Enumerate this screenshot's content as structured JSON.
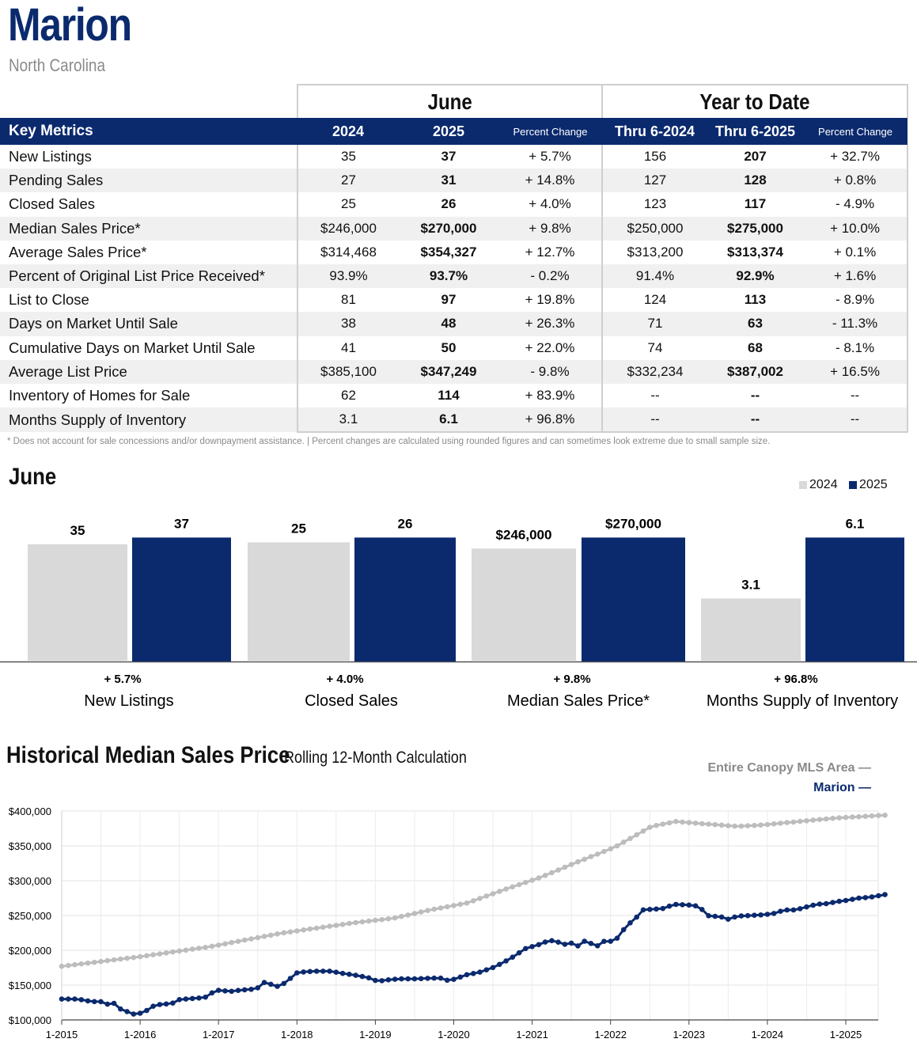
{
  "header": {
    "title": "Marion",
    "subtitle": "North Carolina"
  },
  "table": {
    "group_june": "June",
    "group_ytd": "Year to Date",
    "col_metric": "Key Metrics",
    "col_june_2024": "2024",
    "col_june_2025": "2025",
    "col_june_pct": "Percent Change",
    "col_ytd_2024": "Thru 6-2024",
    "col_ytd_2025": "Thru 6-2025",
    "col_ytd_pct": "Percent Change",
    "rows": [
      {
        "label": "New Listings",
        "j24": "35",
        "j25": "37",
        "jpc": "+ 5.7%",
        "y24": "156",
        "y25": "207",
        "ypc": "+ 32.7%"
      },
      {
        "label": "Pending Sales",
        "j24": "27",
        "j25": "31",
        "jpc": "+ 14.8%",
        "y24": "127",
        "y25": "128",
        "ypc": "+ 0.8%"
      },
      {
        "label": "Closed Sales",
        "j24": "25",
        "j25": "26",
        "jpc": "+ 4.0%",
        "y24": "123",
        "y25": "117",
        "ypc": "- 4.9%"
      },
      {
        "label": "Median Sales Price*",
        "j24": "$246,000",
        "j25": "$270,000",
        "jpc": "+ 9.8%",
        "y24": "$250,000",
        "y25": "$275,000",
        "ypc": "+ 10.0%"
      },
      {
        "label": "Average Sales Price*",
        "j24": "$314,468",
        "j25": "$354,327",
        "jpc": "+ 12.7%",
        "y24": "$313,200",
        "y25": "$313,374",
        "ypc": "+ 0.1%"
      },
      {
        "label": "Percent of Original List Price Received*",
        "j24": "93.9%",
        "j25": "93.7%",
        "jpc": "- 0.2%",
        "y24": "91.4%",
        "y25": "92.9%",
        "ypc": "+ 1.6%"
      },
      {
        "label": "List to Close",
        "j24": "81",
        "j25": "97",
        "jpc": "+ 19.8%",
        "y24": "124",
        "y25": "113",
        "ypc": "- 8.9%"
      },
      {
        "label": "Days on Market Until Sale",
        "j24": "38",
        "j25": "48",
        "jpc": "+ 26.3%",
        "y24": "71",
        "y25": "63",
        "ypc": "- 11.3%"
      },
      {
        "label": "Cumulative Days on Market Until Sale",
        "j24": "41",
        "j25": "50",
        "jpc": "+ 22.0%",
        "y24": "74",
        "y25": "68",
        "ypc": "- 8.1%"
      },
      {
        "label": "Average List Price",
        "j24": "$385,100",
        "j25": "$347,249",
        "jpc": "- 9.8%",
        "y24": "$332,234",
        "y25": "$387,002",
        "ypc": "+ 16.5%"
      },
      {
        "label": "Inventory of Homes for Sale",
        "j24": "62",
        "j25": "114",
        "jpc": "+ 83.9%",
        "y24": "--",
        "y25": "--",
        "ypc": "--"
      },
      {
        "label": "Months Supply of Inventory",
        "j24": "3.1",
        "j25": "6.1",
        "jpc": "+ 96.8%",
        "y24": "--",
        "y25": "--",
        "ypc": "--"
      }
    ]
  },
  "footnote": "* Does not account for sale concessions and/or downpayment assistance.  |  Percent changes are calculated using rounded figures and can sometimes look extreme due to small sample size.",
  "june_section": {
    "title": "June",
    "legend_2024": "2024",
    "legend_2025": "2025"
  },
  "historical": {
    "title": "Historical Median Sales Price",
    "subtitle": "Rolling 12-Month Calculation",
    "legend_area": "Entire Canopy MLS Area  —",
    "legend_marion": "Marion  —"
  },
  "colors": {
    "navy": "#0b2a6e",
    "gray_bar": "#d9d9d9",
    "gray_line": "#bdbdbd"
  },
  "chart_data": [
    {
      "type": "bar",
      "title": "June",
      "groups": [
        {
          "category": "New Listings",
          "v2024": 35,
          "v2025": 37,
          "label2024": "35",
          "label2025": "37",
          "pct": "+ 5.7%"
        },
        {
          "category": "Closed Sales",
          "v2024": 25,
          "v2025": 26,
          "label2024": "25",
          "label2025": "26",
          "pct": "+ 4.0%"
        },
        {
          "category": "Median Sales Price*",
          "v2024": 246000,
          "v2025": 270000,
          "label2024": "$246,000",
          "label2025": "$270,000",
          "pct": "+ 9.8%"
        },
        {
          "category": "Months Supply of Inventory",
          "v2024": 3.1,
          "v2025": 6.1,
          "label2024": "3.1",
          "label2025": "6.1",
          "pct": "+ 96.8%"
        }
      ],
      "series_names": [
        "2024",
        "2025"
      ]
    },
    {
      "type": "line",
      "title": "Historical Median Sales Price",
      "ylim": [
        100000,
        400000
      ],
      "yticks": [
        100000,
        150000,
        200000,
        250000,
        300000,
        350000,
        400000
      ],
      "ytick_labels": [
        "$100,000",
        "$150,000",
        "$200,000",
        "$250,000",
        "$300,000",
        "$350,000",
        "$400,000"
      ],
      "xtick_labels": [
        "1-2015",
        "1-2016",
        "1-2017",
        "1-2018",
        "1-2019",
        "1-2020",
        "1-2021",
        "1-2022",
        "1-2023",
        "1-2024",
        "1-2025"
      ],
      "x_start": "1-2015",
      "x_end_index": 125,
      "series": [
        {
          "name": "Entire Canopy MLS Area",
          "color": "#bdbdbd",
          "anchors": [
            [
              0,
              177000
            ],
            [
              12,
              190000
            ],
            [
              24,
              205000
            ],
            [
              36,
              225000
            ],
            [
              48,
              240000
            ],
            [
              54,
              246000
            ],
            [
              60,
              258000
            ],
            [
              66,
              268000
            ],
            [
              72,
              287000
            ],
            [
              78,
              305000
            ],
            [
              84,
              327000
            ],
            [
              90,
              348000
            ],
            [
              96,
              378000
            ],
            [
              100,
              385000
            ],
            [
              104,
              382000
            ],
            [
              110,
              378000
            ],
            [
              114,
              380000
            ],
            [
              120,
              385000
            ],
            [
              126,
              390000
            ],
            [
              134,
              394000
            ]
          ]
        },
        {
          "name": "Marion",
          "color": "#0b2a6e",
          "anchors": [
            [
              0,
              130000
            ],
            [
              3,
              130000
            ],
            [
              6,
              126000
            ],
            [
              7,
              128000
            ],
            [
              8,
              124000
            ],
            [
              9,
              122000
            ],
            [
              10,
              124000
            ],
            [
              11,
              116000
            ],
            [
              12,
              114000
            ],
            [
              13,
              109000
            ],
            [
              14,
              108000
            ],
            [
              15,
              110000
            ],
            [
              16,
              113000
            ],
            [
              17,
              119000
            ],
            [
              18,
              121000
            ],
            [
              19,
              123000
            ],
            [
              20,
              123000
            ],
            [
              21,
              124000
            ],
            [
              22,
              129000
            ],
            [
              25,
              131000
            ],
            [
              27,
              132000
            ],
            [
              28,
              135000
            ],
            [
              29,
              143000
            ],
            [
              32,
              141000
            ],
            [
              34,
              143000
            ],
            [
              36,
              144000
            ],
            [
              37,
              145000
            ],
            [
              38,
              153000
            ],
            [
              39,
              155000
            ],
            [
              40,
              149000
            ],
            [
              41,
              148000
            ],
            [
              42,
              152000
            ],
            [
              43,
              156000
            ],
            [
              44,
              167000
            ],
            [
              46,
              169000
            ],
            [
              48,
              170000
            ],
            [
              51,
              170000
            ],
            [
              53,
              167000
            ],
            [
              55,
              165000
            ],
            [
              58,
              161000
            ],
            [
              60,
              155000
            ],
            [
              61,
              157000
            ],
            [
              64,
              159000
            ],
            [
              67,
              159000
            ],
            [
              70,
              160000
            ],
            [
              72,
              160000
            ],
            [
              73,
              157000
            ],
            [
              75,
              159000
            ],
            [
              76,
              164000
            ],
            [
              79,
              168000
            ],
            [
              82,
              176000
            ],
            [
              85,
              188000
            ],
            [
              88,
              203000
            ],
            [
              90,
              207000
            ],
            [
              92,
              213000
            ],
            [
              93,
              214000
            ],
            [
              94,
              212000
            ],
            [
              95,
              209000
            ],
            [
              96,
              208000
            ],
            [
              97,
              212000
            ],
            [
              98,
              205000
            ],
            [
              99,
              213000
            ],
            [
              100,
              211000
            ],
            [
              101,
              207000
            ],
            [
              102,
              206000
            ],
            [
              103,
              215000
            ],
            [
              104,
              213000
            ],
            [
              105,
              216000
            ],
            [
              106,
              222000
            ],
            [
              107,
              238000
            ],
            [
              108,
              240000
            ],
            [
              109,
              248000
            ],
            [
              110,
              258000
            ],
            [
              114,
              260000
            ],
            [
              116,
              266000
            ],
            [
              119,
              265000
            ],
            [
              121,
              263000
            ],
            [
              122,
              250000
            ],
            [
              125,
              248000
            ],
            [
              126,
              244000
            ],
            [
              128,
              249000
            ],
            [
              133,
              251000
            ],
            [
              135,
              253000
            ],
            [
              137,
              258000
            ],
            [
              139,
              258000
            ],
            [
              141,
              262000
            ],
            [
              143,
              266000
            ],
            [
              145,
              267000
            ],
            [
              147,
              270000
            ],
            [
              149,
              272000
            ],
            [
              151,
              275000
            ],
            [
              153,
              276000
            ],
            [
              156,
              280000
            ]
          ]
        }
      ]
    }
  ]
}
